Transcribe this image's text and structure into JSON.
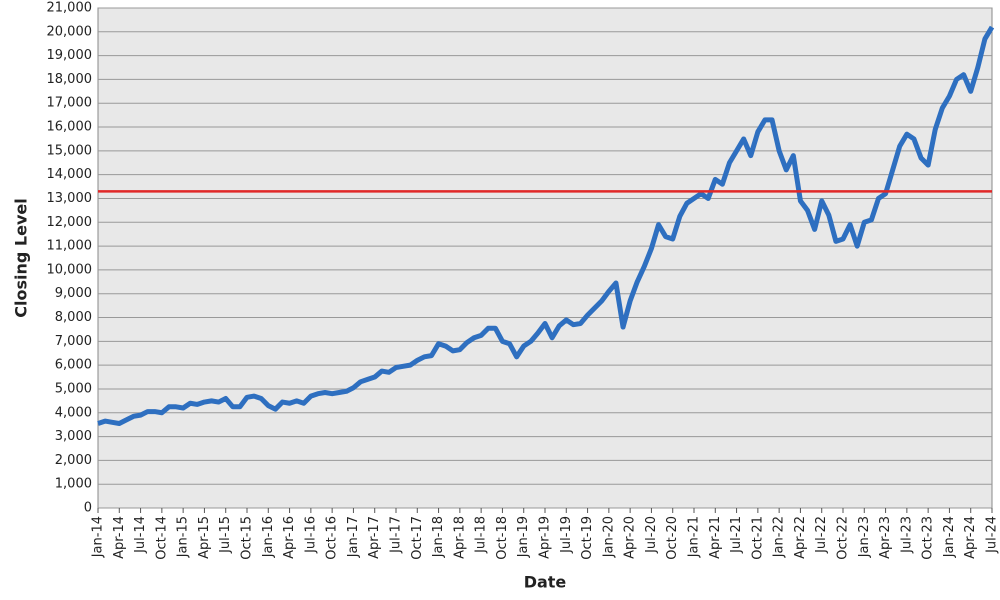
{
  "chart_data": {
    "type": "line",
    "x_label": "Date",
    "y_label": "Closing Level",
    "x": [
      "Jan-14",
      "Feb-14",
      "Mar-14",
      "Apr-14",
      "May-14",
      "Jun-14",
      "Jul-14",
      "Aug-14",
      "Sep-14",
      "Oct-14",
      "Nov-14",
      "Dec-14",
      "Jan-15",
      "Feb-15",
      "Mar-15",
      "Apr-15",
      "May-15",
      "Jun-15",
      "Jul-15",
      "Aug-15",
      "Sep-15",
      "Oct-15",
      "Nov-15",
      "Dec-15",
      "Jan-16",
      "Feb-16",
      "Mar-16",
      "Apr-16",
      "May-16",
      "Jun-16",
      "Jul-16",
      "Aug-16",
      "Sep-16",
      "Oct-16",
      "Nov-16",
      "Dec-16",
      "Jan-17",
      "Feb-17",
      "Mar-17",
      "Apr-17",
      "May-17",
      "Jun-17",
      "Jul-17",
      "Aug-17",
      "Sep-17",
      "Oct-17",
      "Nov-17",
      "Dec-17",
      "Jan-18",
      "Feb-18",
      "Mar-18",
      "Apr-18",
      "May-18",
      "Jun-18",
      "Jul-18",
      "Aug-18",
      "Sep-18",
      "Oct-18",
      "Nov-18",
      "Dec-18",
      "Jan-19",
      "Feb-19",
      "Mar-19",
      "Apr-19",
      "May-19",
      "Jun-19",
      "Jul-19",
      "Aug-19",
      "Sep-19",
      "Oct-19",
      "Nov-19",
      "Dec-19",
      "Jan-20",
      "Feb-20",
      "Mar-20",
      "Apr-20",
      "May-20",
      "Jun-20",
      "Jul-20",
      "Aug-20",
      "Sep-20",
      "Oct-20",
      "Nov-20",
      "Dec-20",
      "Jan-21",
      "Feb-21",
      "Mar-21",
      "Apr-21",
      "May-21",
      "Jun-21",
      "Jul-21",
      "Aug-21",
      "Sep-21",
      "Oct-21",
      "Nov-21",
      "Dec-21",
      "Jan-22",
      "Feb-22",
      "Mar-22",
      "Apr-22",
      "May-22",
      "Jun-22",
      "Jul-22",
      "Aug-22",
      "Sep-22",
      "Oct-22",
      "Nov-22",
      "Dec-22",
      "Jan-23",
      "Feb-23",
      "Mar-23",
      "Apr-23",
      "May-23",
      "Jun-23",
      "Jul-23",
      "Aug-23",
      "Sep-23",
      "Oct-23",
      "Nov-23",
      "Dec-23",
      "Jan-24",
      "Feb-24",
      "Mar-24",
      "Apr-24",
      "May-24",
      "Jun-24",
      "Jul-24"
    ],
    "values": [
      3550,
      3650,
      3600,
      3550,
      3700,
      3850,
      3900,
      4050,
      4050,
      4000,
      4250,
      4250,
      4200,
      4400,
      4350,
      4450,
      4500,
      4450,
      4600,
      4250,
      4250,
      4650,
      4700,
      4600,
      4300,
      4150,
      4450,
      4400,
      4500,
      4400,
      4700,
      4800,
      4850,
      4800,
      4850,
      4900,
      5050,
      5300,
      5400,
      5500,
      5750,
      5700,
      5900,
      5950,
      6000,
      6200,
      6350,
      6400,
      6900,
      6800,
      6600,
      6650,
      6950,
      7150,
      7250,
      7550,
      7550,
      7000,
      6900,
      6350,
      6800,
      7000,
      7350,
      7750,
      7150,
      7650,
      7900,
      7700,
      7750,
      8100,
      8400,
      8700,
      9100,
      9450,
      7600,
      8700,
      9500,
      10150,
      10900,
      11900,
      11400,
      11300,
      12250,
      12800,
      13000,
      13200,
      13000,
      13800,
      13600,
      14500,
      15000,
      15500,
      14800,
      15800,
      16300,
      16300,
      15000,
      14200,
      14800,
      12900,
      12500,
      11700,
      12900,
      12300,
      11200,
      11300,
      11900,
      11000,
      12000,
      12100,
      13000,
      13200,
      14200,
      15200,
      15700,
      15500,
      14700,
      14400,
      15900,
      16800,
      17300,
      18000,
      18200,
      17500,
      18500,
      19700,
      20200
    ],
    "color": "#2e6fc0",
    "reference_line": {
      "value": 13300,
      "color": "#e02828"
    },
    "xlim": [
      "Jan-14",
      "Jul-24"
    ],
    "xticks": [
      "Jan-14",
      "Apr-14",
      "Jul-14",
      "Oct-14",
      "Jan-15",
      "Apr-15",
      "Jul-15",
      "Oct-15",
      "Jan-16",
      "Apr-16",
      "Jul-16",
      "Oct-16",
      "Jan-17",
      "Apr-17",
      "Jul-17",
      "Oct-17",
      "Jan-18",
      "Apr-18",
      "Jul-18",
      "Oct-18",
      "Jan-19",
      "Apr-19",
      "Jul-19",
      "Oct-19",
      "Jan-20",
      "Apr-20",
      "Jul-20",
      "Oct-20",
      "Jan-21",
      "Apr-21",
      "Jul-21",
      "Oct-21",
      "Jan-22",
      "Apr-22",
      "Jul-22",
      "Oct-22",
      "Jan-23",
      "Apr-23",
      "Jul-23",
      "Oct-23",
      "Jan-24",
      "Apr-24",
      "Jul-24"
    ],
    "ylim": [
      0,
      21000
    ],
    "yticks": [
      0,
      {
        "value": 1000,
        "label": "1,000"
      },
      {
        "value": 2000,
        "label": "2,000"
      },
      {
        "value": 3000,
        "label": "3,000"
      },
      {
        "value": 4000,
        "label": "4,000"
      },
      {
        "value": 5000,
        "label": "5,000"
      },
      {
        "value": 6000,
        "label": "6,000"
      },
      {
        "value": 7000,
        "label": "7,000"
      },
      {
        "value": 8000,
        "label": "8,000"
      },
      {
        "value": 9000,
        "label": "9,000"
      },
      {
        "value": 10000,
        "label": "10,000"
      },
      {
        "value": 11000,
        "label": "11,000"
      },
      {
        "value": 12000,
        "label": "12,000"
      },
      {
        "value": 13000,
        "label": "13,000"
      },
      {
        "value": 14000,
        "label": "14,000"
      },
      {
        "value": 15000,
        "label": "15,000"
      },
      {
        "value": 16000,
        "label": "16,000"
      },
      {
        "value": 17000,
        "label": "17,000"
      },
      {
        "value": 18000,
        "label": "18,000"
      },
      {
        "value": 19000,
        "label": "19,000"
      },
      {
        "value": 20000,
        "label": "20,000"
      },
      {
        "value": 21000,
        "label": "21,000"
      }
    ],
    "grid": true
  }
}
